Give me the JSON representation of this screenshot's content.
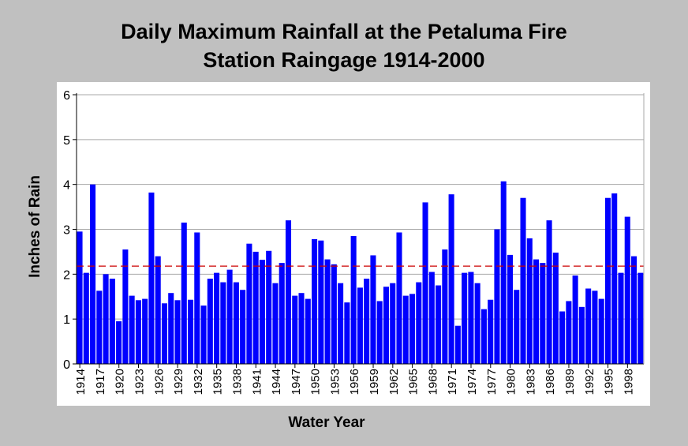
{
  "chart_data": {
    "type": "bar",
    "title_line1": "Daily Maximum Rainfall at the Petaluma Fire",
    "title_line2": "Station Raingage 1914-2000",
    "xlabel": "Water Year",
    "ylabel": "Inches of Rain",
    "ylim": [
      0,
      6
    ],
    "yticks": [
      "0",
      "1",
      "2",
      "3",
      "4",
      "5",
      "6"
    ],
    "grid": true,
    "legend": "none",
    "bar_color": "#0000ff",
    "reference_line": {
      "value": 2.18,
      "color": "#cc0000",
      "style": "dashed"
    },
    "categories": [
      "1914",
      "1915",
      "1916",
      "1917",
      "1918",
      "1919",
      "1920",
      "1921",
      "1922",
      "1923",
      "1924",
      "1925",
      "1926",
      "1927",
      "1928",
      "1929",
      "1930",
      "1931",
      "1932",
      "1933",
      "1934",
      "1935",
      "1936",
      "1937",
      "1938",
      "1939",
      "1940",
      "1941",
      "1942",
      "1943",
      "1944",
      "1945",
      "1946",
      "1947",
      "1948",
      "1949",
      "1950",
      "1951",
      "1952",
      "1953",
      "1954",
      "1955",
      "1956",
      "1957",
      "1958",
      "1959",
      "1960",
      "1961",
      "1962",
      "1963",
      "1964",
      "1965",
      "1966",
      "1967",
      "1968",
      "1969",
      "1970",
      "1971",
      "1972",
      "1973",
      "1974",
      "1975",
      "1976",
      "1977",
      "1978",
      "1979",
      "1980",
      "1981",
      "1982",
      "1983",
      "1984",
      "1985",
      "1986",
      "1987",
      "1988",
      "1989",
      "1990",
      "1991",
      "1992",
      "1993",
      "1994",
      "1995",
      "1996",
      "1997",
      "1998",
      "1999",
      "2000"
    ],
    "tick_labels": [
      "1914",
      "1917",
      "1920",
      "1923",
      "1926",
      "1929",
      "1932",
      "1935",
      "1938",
      "1941",
      "1944",
      "1947",
      "1950",
      "1953",
      "1956",
      "1959",
      "1962",
      "1965",
      "1968",
      "1971",
      "1974",
      "1977",
      "1980",
      "1983",
      "1986",
      "1989",
      "1992",
      "1995",
      "1998"
    ],
    "values": [
      2.95,
      2.03,
      4.0,
      1.63,
      2.0,
      1.9,
      0.95,
      2.55,
      1.52,
      1.42,
      1.45,
      3.82,
      2.4,
      1.35,
      1.58,
      1.42,
      3.15,
      1.43,
      2.93,
      1.3,
      1.9,
      2.03,
      1.82,
      2.1,
      1.82,
      1.65,
      2.68,
      2.5,
      2.32,
      2.52,
      1.8,
      2.25,
      3.2,
      1.52,
      1.58,
      1.45,
      2.78,
      2.75,
      2.33,
      2.22,
      1.8,
      1.37,
      2.85,
      1.7,
      1.9,
      2.42,
      1.4,
      1.72,
      1.8,
      2.93,
      1.52,
      1.56,
      1.82,
      3.6,
      2.05,
      1.75,
      2.55,
      3.78,
      0.85,
      2.03,
      2.05,
      1.8,
      1.22,
      1.43,
      3.0,
      4.07,
      2.43,
      1.65,
      3.7,
      2.8,
      2.33,
      2.25,
      3.2,
      2.48,
      1.17,
      1.4,
      1.97,
      1.27,
      1.68,
      1.63,
      1.45,
      3.7,
      3.8,
      2.03,
      3.28,
      2.4,
      2.03
    ]
  }
}
